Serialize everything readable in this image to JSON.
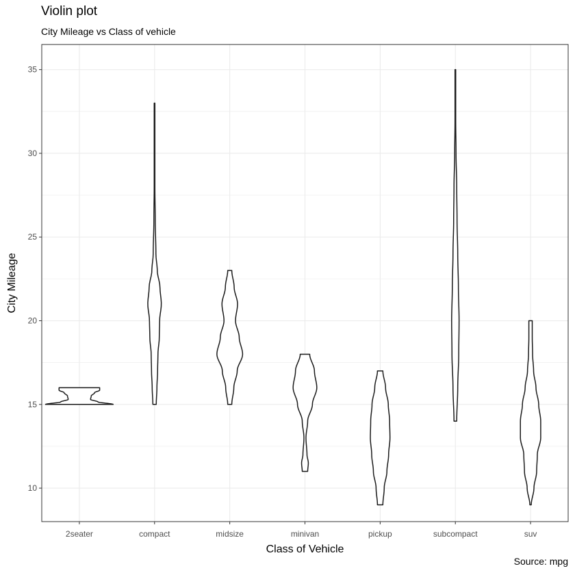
{
  "chart_data": {
    "type": "violin",
    "title": "Violin plot",
    "subtitle": "City Mileage vs Class of vehicle",
    "xlabel": "Class of Vehicle",
    "ylabel": "City Mileage",
    "caption": "Source: mpg",
    "ylim": [
      8,
      36.5
    ],
    "yticks": [
      10,
      15,
      20,
      25,
      30,
      35
    ],
    "grid": true,
    "categories": [
      "2seater",
      "compact",
      "midsize",
      "minivan",
      "pickup",
      "subcompact",
      "suv"
    ],
    "violins": [
      {
        "category": "2seater",
        "min": 15,
        "max": 16,
        "profile": [
          [
            15,
            1.0
          ],
          [
            15.15,
            0.55
          ],
          [
            15.3,
            0.33
          ],
          [
            15.5,
            0.35
          ],
          [
            15.7,
            0.45
          ],
          [
            15.85,
            0.6
          ],
          [
            16,
            0.6
          ]
        ]
      },
      {
        "category": "compact",
        "min": 15,
        "max": 33,
        "profile": [
          [
            15,
            0.05
          ],
          [
            16,
            0.07
          ],
          [
            17,
            0.09
          ],
          [
            18,
            0.1
          ],
          [
            19,
            0.14
          ],
          [
            20,
            0.15
          ],
          [
            21,
            0.2
          ],
          [
            22,
            0.16
          ],
          [
            23,
            0.08
          ],
          [
            24,
            0.04
          ],
          [
            26,
            0.02
          ],
          [
            28,
            0.01
          ],
          [
            30,
            0.01
          ],
          [
            33,
            0.01
          ]
        ]
      },
      {
        "category": "midsize",
        "min": 15,
        "max": 23,
        "profile": [
          [
            15,
            0.06
          ],
          [
            16,
            0.12
          ],
          [
            17,
            0.22
          ],
          [
            18,
            0.38
          ],
          [
            19,
            0.28
          ],
          [
            20,
            0.17
          ],
          [
            21,
            0.23
          ],
          [
            22,
            0.13
          ],
          [
            23,
            0.06
          ]
        ]
      },
      {
        "category": "minivan",
        "min": 11,
        "max": 18,
        "profile": [
          [
            11,
            0.08
          ],
          [
            11.5,
            0.1
          ],
          [
            12,
            0.06
          ],
          [
            13,
            0.03
          ],
          [
            14,
            0.08
          ],
          [
            15,
            0.22
          ],
          [
            16,
            0.35
          ],
          [
            17,
            0.28
          ],
          [
            18,
            0.14
          ]
        ]
      },
      {
        "category": "pickup",
        "min": 9,
        "max": 17,
        "profile": [
          [
            9,
            0.08
          ],
          [
            10,
            0.12
          ],
          [
            11,
            0.2
          ],
          [
            12,
            0.25
          ],
          [
            13,
            0.29
          ],
          [
            14,
            0.28
          ],
          [
            15,
            0.24
          ],
          [
            16,
            0.16
          ],
          [
            17,
            0.08
          ]
        ]
      },
      {
        "category": "subcompact",
        "min": 14,
        "max": 35,
        "profile": [
          [
            14,
            0.04
          ],
          [
            16,
            0.07
          ],
          [
            18,
            0.1
          ],
          [
            20,
            0.11
          ],
          [
            22,
            0.09
          ],
          [
            24,
            0.07
          ],
          [
            26,
            0.05
          ],
          [
            28,
            0.04
          ],
          [
            30,
            0.02
          ],
          [
            32,
            0.01
          ],
          [
            35,
            0.01
          ]
        ]
      },
      {
        "category": "suv",
        "min": 9,
        "max": 20,
        "profile": [
          [
            9,
            0.02
          ],
          [
            10,
            0.1
          ],
          [
            11,
            0.18
          ],
          [
            12,
            0.2
          ],
          [
            13,
            0.3
          ],
          [
            14,
            0.3
          ],
          [
            15,
            0.24
          ],
          [
            16,
            0.16
          ],
          [
            17,
            0.09
          ],
          [
            18,
            0.06
          ],
          [
            19,
            0.05
          ],
          [
            20,
            0.05
          ]
        ]
      }
    ]
  }
}
